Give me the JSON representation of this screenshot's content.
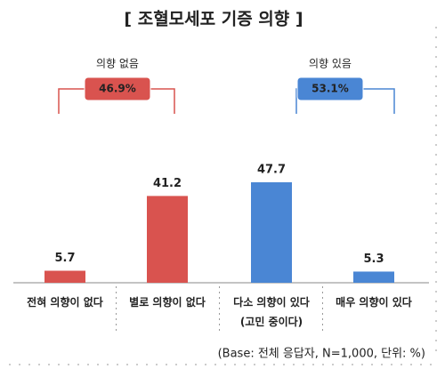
{
  "chart_data": {
    "type": "bar",
    "title": "[ 조혈모세포 기증 의향 ]",
    "categories": [
      "전혀 의향이 없다",
      "별로 의향이 없다",
      "다소 의향이 있다\n(고민 중이다)",
      "매우 의향이 있다"
    ],
    "values": [
      5.7,
      41.2,
      47.7,
      5.3
    ],
    "colors": [
      "#d9534f",
      "#d9534f",
      "#4a86d4",
      "#4a86d4"
    ],
    "groups": {
      "names": [
        "의향 없음",
        "의향 있음"
      ],
      "values": [
        46.9,
        53.1
      ],
      "value_labels": [
        "46.9%",
        "53.1%"
      ],
      "colors": [
        "#d9534f",
        "#4a86d4"
      ]
    },
    "note": "(Base: 전체 응답자, N=1,000, 단위: %)"
  }
}
